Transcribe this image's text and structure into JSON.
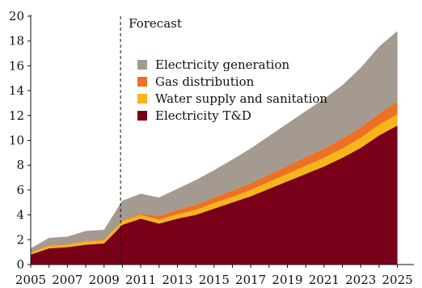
{
  "chart_data": {
    "type": "area",
    "stacked": true,
    "x": [
      2005,
      2006,
      2007,
      2008,
      2009,
      2010,
      2011,
      2012,
      2013,
      2014,
      2015,
      2016,
      2017,
      2018,
      2019,
      2020,
      2021,
      2022,
      2023,
      2024,
      2025
    ],
    "xlim": [
      2005,
      2025.9
    ],
    "ylim": [
      0,
      20
    ],
    "xticks": [
      "2005",
      "2007",
      "2009",
      "2011",
      "2013",
      "2015",
      "2017",
      "2019",
      "2021",
      "2023",
      "2025"
    ],
    "yticks": [
      "0",
      "2",
      "4",
      "6",
      "8",
      "10",
      "12",
      "14",
      "16",
      "18",
      "20"
    ],
    "series": [
      {
        "name": "Electricity T&D",
        "color": "#7a0019",
        "values": [
          0.8,
          1.3,
          1.4,
          1.6,
          1.7,
          3.2,
          3.7,
          3.3,
          3.7,
          4.0,
          4.5,
          5.0,
          5.5,
          6.1,
          6.7,
          7.3,
          7.9,
          8.6,
          9.4,
          10.4,
          11.2
        ]
      },
      {
        "name": "Water supply and sanitation",
        "color": "#f5b51b",
        "values": [
          0.15,
          0.2,
          0.2,
          0.25,
          0.25,
          0.3,
          0.3,
          0.3,
          0.35,
          0.4,
          0.45,
          0.45,
          0.5,
          0.55,
          0.6,
          0.65,
          0.7,
          0.75,
          0.8,
          0.85,
          0.9
        ]
      },
      {
        "name": "Gas distribution",
        "color": "#ee7022",
        "values": [
          0.05,
          0.05,
          0.05,
          0.05,
          0.05,
          0.05,
          0.1,
          0.3,
          0.35,
          0.4,
          0.45,
          0.5,
          0.55,
          0.6,
          0.65,
          0.7,
          0.75,
          0.8,
          0.85,
          0.9,
          1.0
        ]
      },
      {
        "name": "Electricity generation",
        "color": "#a49a8f",
        "values": [
          0.3,
          0.6,
          0.6,
          0.8,
          0.8,
          1.6,
          1.6,
          1.5,
          1.7,
          2.0,
          2.2,
          2.5,
          2.8,
          3.1,
          3.4,
          3.7,
          4.0,
          4.3,
          4.8,
          5.4,
          5.7
        ]
      }
    ],
    "legend_order": [
      "Electricity generation",
      "Gas distribution",
      "Water supply and sanitation",
      "Electricity T&D"
    ],
    "legend_position": "upper-left",
    "annotation": {
      "text": "Forecast",
      "x": 2009.9
    },
    "grid": false
  }
}
